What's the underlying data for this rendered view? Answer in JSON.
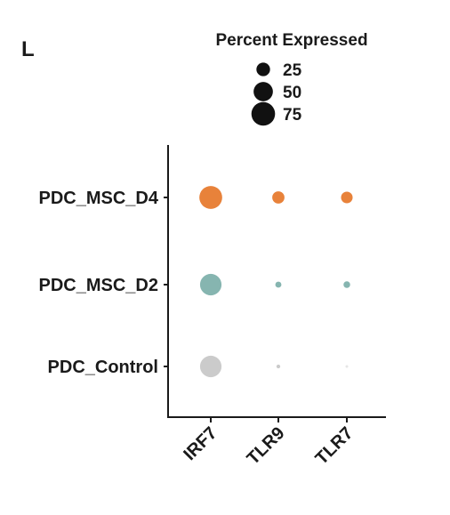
{
  "panel_letter": "L",
  "chart_data": {
    "type": "scatter",
    "subtype": "dot-plot",
    "title": "",
    "xlabel": "",
    "ylabel": "",
    "x_categories": [
      "IRF7",
      "TLR9",
      "TLR7"
    ],
    "y_categories": [
      "PDC_MSC_D4",
      "PDC_MSC_D2",
      "PDC_Control"
    ],
    "size_legend": {
      "title": "Percent Expressed",
      "entries": [
        25,
        50,
        75
      ]
    },
    "points": [
      {
        "x": "IRF7",
        "y": "PDC_MSC_D4",
        "percent_expressed": 70,
        "color": "#e8823a"
      },
      {
        "x": "TLR9",
        "y": "PDC_MSC_D4",
        "percent_expressed": 20,
        "color": "#e8823a"
      },
      {
        "x": "TLR7",
        "y": "PDC_MSC_D4",
        "percent_expressed": 18,
        "color": "#e8823a"
      },
      {
        "x": "IRF7",
        "y": "PDC_MSC_D2",
        "percent_expressed": 62,
        "color": "#86b5b0"
      },
      {
        "x": "TLR9",
        "y": "PDC_MSC_D2",
        "percent_expressed": 5,
        "color": "#86b5b0"
      },
      {
        "x": "TLR7",
        "y": "PDC_MSC_D2",
        "percent_expressed": 6,
        "color": "#86b5b0"
      },
      {
        "x": "IRF7",
        "y": "PDC_Control",
        "percent_expressed": 62,
        "color": "#cbcbcb"
      },
      {
        "x": "TLR9",
        "y": "PDC_Control",
        "percent_expressed": 2,
        "color": "#cbcbcb"
      },
      {
        "x": "TLR7",
        "y": "PDC_Control",
        "percent_expressed": 1,
        "color": "#e6e6e6"
      }
    ],
    "legend_color": "#111111",
    "grid": false
  }
}
